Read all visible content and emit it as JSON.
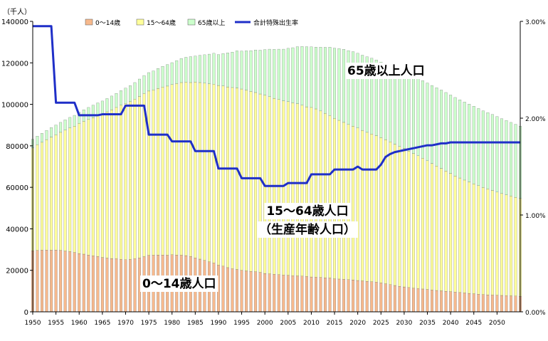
{
  "chart_data": {
    "type": "bar",
    "stacked": true,
    "unit_label": "（千人）",
    "x": [
      1950,
      1951,
      1952,
      1953,
      1954,
      1955,
      1956,
      1957,
      1958,
      1959,
      1960,
      1961,
      1962,
      1963,
      1964,
      1965,
      1966,
      1967,
      1968,
      1969,
      1970,
      1971,
      1972,
      1973,
      1974,
      1975,
      1976,
      1977,
      1978,
      1979,
      1980,
      1981,
      1982,
      1983,
      1984,
      1985,
      1986,
      1987,
      1988,
      1989,
      1990,
      1991,
      1992,
      1993,
      1994,
      1995,
      1996,
      1997,
      1998,
      1999,
      2000,
      2001,
      2002,
      2003,
      2004,
      2005,
      2006,
      2007,
      2008,
      2009,
      2010,
      2011,
      2012,
      2013,
      2014,
      2015,
      2016,
      2017,
      2018,
      2019,
      2020,
      2021,
      2022,
      2023,
      2024,
      2025,
      2026,
      2027,
      2028,
      2029,
      2030,
      2031,
      2032,
      2033,
      2034,
      2035,
      2036,
      2037,
      2038,
      2039,
      2040,
      2041,
      2042,
      2043,
      2044,
      2045,
      2046,
      2047,
      2048,
      2049,
      2050,
      2051,
      2052,
      2053,
      2054,
      2055
    ],
    "x_ticks": [
      1950,
      1955,
      1960,
      1965,
      1970,
      1975,
      1980,
      1985,
      1990,
      1995,
      2000,
      2005,
      2010,
      2015,
      2020,
      2025,
      2030,
      2035,
      2040,
      2045,
      2050
    ],
    "series": [
      {
        "name": "0～14歳",
        "color": "#f7b98d",
        "values": [
          29400,
          29600,
          29700,
          29800,
          29700,
          29800,
          29600,
          29300,
          29000,
          28600,
          28100,
          27800,
          27400,
          27000,
          26700,
          26200,
          25900,
          25700,
          25600,
          25300,
          25100,
          25300,
          25600,
          26000,
          26600,
          27200,
          27300,
          27400,
          27400,
          27300,
          27500,
          27400,
          27300,
          27100,
          26700,
          26000,
          25400,
          24800,
          24100,
          23500,
          22500,
          22000,
          21300,
          20800,
          20400,
          20000,
          19700,
          19500,
          19300,
          19000,
          18500,
          18300,
          18100,
          17900,
          17700,
          17600,
          17400,
          17300,
          17200,
          17000,
          16800,
          16700,
          16600,
          16400,
          16300,
          15900,
          15800,
          15700,
          15500,
          15400,
          15100,
          14900,
          14700,
          14500,
          14300,
          13900,
          13500,
          13100,
          12700,
          12300,
          12000,
          11700,
          11400,
          11200,
          11000,
          10800,
          10500,
          10300,
          10100,
          9900,
          9700,
          9500,
          9300,
          9100,
          8900,
          8700,
          8500,
          8300,
          8200,
          8100,
          8000,
          7900,
          7800,
          7700,
          7600,
          7500
        ]
      },
      {
        "name": "15～64歳",
        "color": "#ffff9b",
        "values": [
          49600,
          50900,
          52000,
          53200,
          54500,
          55500,
          56900,
          58300,
          59600,
          60900,
          62700,
          64000,
          65300,
          66600,
          67800,
          69200,
          70500,
          71700,
          72900,
          74300,
          75300,
          76000,
          76900,
          77800,
          78600,
          79200,
          79600,
          80300,
          80900,
          81500,
          82000,
          82600,
          83200,
          83600,
          83800,
          84800,
          85100,
          85400,
          85800,
          86200,
          86600,
          86900,
          87100,
          87300,
          87500,
          87400,
          87100,
          86700,
          86400,
          86000,
          85900,
          85400,
          84800,
          84400,
          84000,
          83700,
          83300,
          83000,
          82400,
          81800,
          81700,
          81100,
          80200,
          79200,
          78300,
          77300,
          76500,
          75600,
          74800,
          74100,
          73500,
          72500,
          71800,
          71200,
          70600,
          70000,
          69500,
          68800,
          68100,
          67400,
          66700,
          65800,
          64900,
          64000,
          63000,
          62000,
          61000,
          60000,
          59000,
          58000,
          57000,
          56000,
          55200,
          54400,
          53700,
          53000,
          52300,
          51600,
          51000,
          50400,
          49700,
          49100,
          48600,
          48100,
          47600,
          47100
        ]
      },
      {
        "name": "65歳以上",
        "color": "#ccffcc",
        "values": [
          4100,
          4200,
          4300,
          4400,
          4600,
          4700,
          4800,
          4900,
          5100,
          5200,
          5400,
          5600,
          5800,
          6000,
          6200,
          6200,
          6400,
          6600,
          6800,
          7000,
          7400,
          7700,
          8000,
          8400,
          8700,
          8900,
          9200,
          9600,
          10000,
          10400,
          10600,
          11100,
          11600,
          12000,
          12500,
          12500,
          13100,
          13700,
          14300,
          14900,
          14900,
          15600,
          16400,
          17100,
          17900,
          18300,
          19000,
          19700,
          20500,
          21100,
          22000,
          22900,
          23600,
          24300,
          24900,
          25700,
          26600,
          27500,
          28300,
          29000,
          29200,
          29800,
          30800,
          31900,
          33000,
          33900,
          34600,
          35200,
          35600,
          35900,
          36000,
          36300,
          36400,
          36500,
          36500,
          36500,
          36700,
          36700,
          36800,
          36900,
          37000,
          37100,
          37200,
          37300,
          37400,
          37500,
          37600,
          37700,
          37800,
          37800,
          37800,
          37800,
          37700,
          37600,
          37500,
          37400,
          37200,
          37000,
          36800,
          36600,
          36400,
          36100,
          35800,
          35500,
          35200,
          34900
        ]
      }
    ],
    "line_series": {
      "name": "合計特殊出生率",
      "color": "#1f2fc8",
      "values": [
        2.95,
        2.95,
        2.95,
        2.95,
        2.95,
        2.16,
        2.16,
        2.16,
        2.16,
        2.16,
        2.03,
        2.03,
        2.03,
        2.03,
        2.03,
        2.04,
        2.04,
        2.04,
        2.04,
        2.04,
        2.13,
        2.13,
        2.13,
        2.13,
        2.13,
        1.83,
        1.83,
        1.83,
        1.83,
        1.83,
        1.76,
        1.76,
        1.76,
        1.76,
        1.76,
        1.66,
        1.66,
        1.66,
        1.66,
        1.66,
        1.48,
        1.48,
        1.48,
        1.48,
        1.48,
        1.38,
        1.38,
        1.38,
        1.38,
        1.38,
        1.3,
        1.3,
        1.3,
        1.3,
        1.3,
        1.33,
        1.33,
        1.33,
        1.33,
        1.33,
        1.42,
        1.42,
        1.42,
        1.42,
        1.42,
        1.47,
        1.47,
        1.47,
        1.47,
        1.47,
        1.5,
        1.47,
        1.47,
        1.47,
        1.47,
        1.52,
        1.6,
        1.63,
        1.65,
        1.66,
        1.67,
        1.68,
        1.69,
        1.7,
        1.71,
        1.72,
        1.72,
        1.73,
        1.74,
        1.74,
        1.75,
        1.75,
        1.75,
        1.75,
        1.75,
        1.75,
        1.75,
        1.75,
        1.75,
        1.75,
        1.75,
        1.75,
        1.75,
        1.75,
        1.75,
        1.75
      ]
    },
    "left_axis": {
      "min": 0,
      "max": 140000,
      "ticks": [
        "0",
        "20000",
        "40000",
        "60000",
        "80000",
        "100000",
        "120000",
        "140000"
      ]
    },
    "right_axis": {
      "min": 0,
      "max": 3,
      "ticks": [
        "0.00%",
        "1.00%",
        "2.00%",
        "3.00%"
      ]
    },
    "legend": [
      "0～14歳",
      "15～64歳",
      "65歳以上",
      "合計特殊出生率"
    ],
    "annotations": {
      "elderly": "65歳以上人口",
      "working": "15～64歳人口",
      "working_sub": "（生産年齢人口）",
      "children": "0～14歳人口"
    }
  }
}
